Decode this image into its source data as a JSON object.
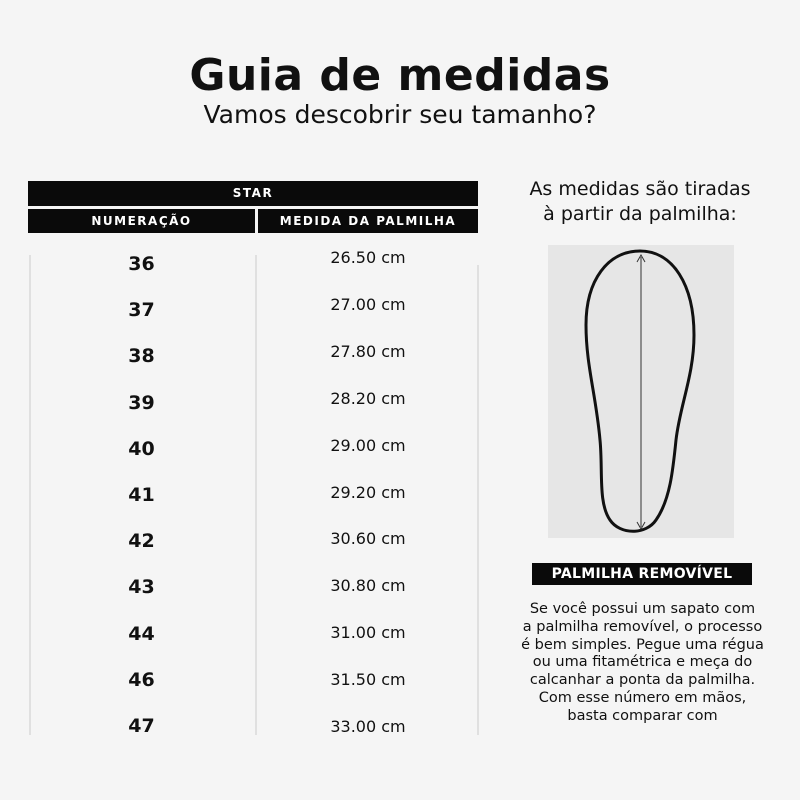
{
  "header": {
    "title": "Guia de medidas",
    "subtitle": "Vamos descobrir seu tamanho?"
  },
  "table": {
    "brand": "STAR",
    "columns": [
      "NUMERAÇÃO",
      "MEDIDA DA PALMILHA"
    ],
    "rows": [
      {
        "size": "36",
        "measure": "26.50 cm"
      },
      {
        "size": "37",
        "measure": "27.00 cm"
      },
      {
        "size": "38",
        "measure": "27.80 cm"
      },
      {
        "size": "39",
        "measure": "28.20 cm"
      },
      {
        "size": "40",
        "measure": "29.00 cm"
      },
      {
        "size": "41",
        "measure": "29.20 cm"
      },
      {
        "size": "42",
        "measure": "30.60 cm"
      },
      {
        "size": "43",
        "measure": "30.80 cm"
      },
      {
        "size": "44",
        "measure": "31.00 cm"
      },
      {
        "size": "46",
        "measure": "31.50 cm"
      },
      {
        "size": "47",
        "measure": "33.00 cm"
      }
    ]
  },
  "side": {
    "title_line1": "As medidas são tiradas",
    "title_line2": "à partir da palmilha:",
    "illustration_icon": "insole-measure-icon",
    "badge": "PALMILHA REMOVÍVEL",
    "description": [
      "Se você possui um sapato com",
      "a palmilha removível, o processo",
      "é bem simples. Pegue uma régua",
      "ou uma fitamétrica e meça do",
      "calcanhar a ponta da palmilha.",
      "Com esse número em mãos,",
      "basta comparar com"
    ]
  }
}
